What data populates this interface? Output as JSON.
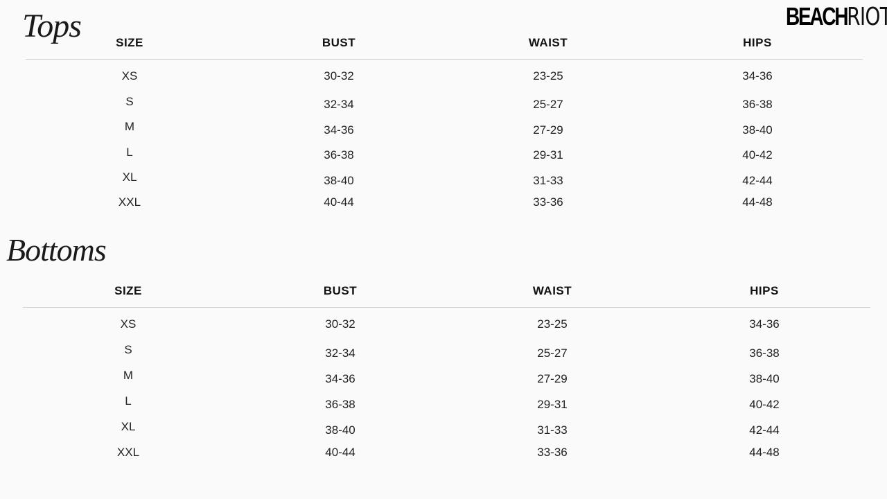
{
  "logo": {
    "bold": "BEACH",
    "light": "RIOT"
  },
  "tables": [
    {
      "title": "Tops",
      "headers": [
        "SIZE",
        "BUST",
        "WAIST",
        "HIPS"
      ],
      "rows": [
        [
          "XS",
          "30-32",
          "23-25",
          "34-36"
        ],
        [
          "S",
          "32-34",
          "25-27",
          "36-38"
        ],
        [
          "M",
          "34-36",
          "27-29",
          "38-40"
        ],
        [
          "L",
          "36-38",
          "29-31",
          "40-42"
        ],
        [
          "XL",
          "38-40",
          "31-33",
          "42-44"
        ],
        [
          "XXL",
          "40-44",
          "33-36",
          "44-48"
        ]
      ]
    },
    {
      "title": "Bottoms",
      "headers": [
        "SIZE",
        "BUST",
        "WAIST",
        "HIPS"
      ],
      "rows": [
        [
          "XS",
          "30-32",
          "23-25",
          "34-36"
        ],
        [
          "S",
          "32-34",
          "25-27",
          "36-38"
        ],
        [
          "M",
          "34-36",
          "27-29",
          "38-40"
        ],
        [
          "L",
          "36-38",
          "29-31",
          "40-42"
        ],
        [
          "XL",
          "38-40",
          "31-33",
          "42-44"
        ],
        [
          "XXL",
          "40-44",
          "33-36",
          "44-48"
        ]
      ]
    }
  ]
}
